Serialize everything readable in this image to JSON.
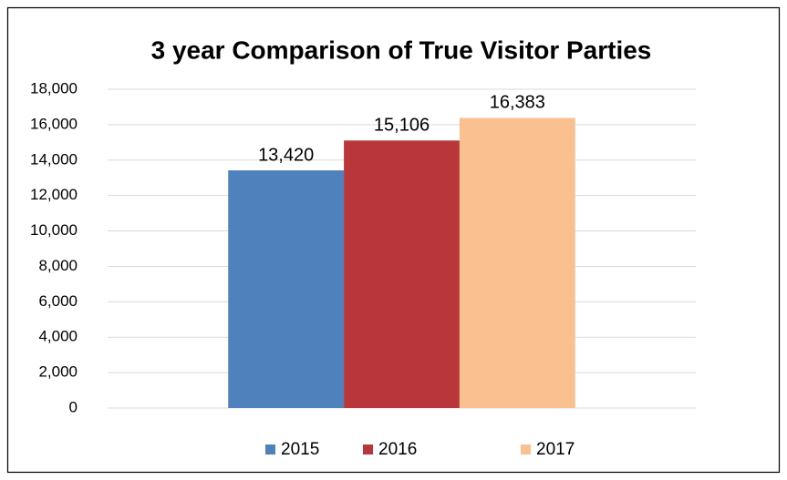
{
  "chart_data": {
    "type": "bar",
    "title": "3 year Comparison of True Visitor Parties",
    "categories": [
      null
    ],
    "series": [
      {
        "name": "2015",
        "color": "#4f81bd",
        "values": [
          13420
        ],
        "value_labels": [
          "13,420"
        ]
      },
      {
        "name": "2016",
        "color": "#b9373a",
        "values": [
          15106
        ],
        "value_labels": [
          "15,106"
        ]
      },
      {
        "name": "2017",
        "color": "#fac090",
        "values": [
          16383
        ],
        "value_labels": [
          "16,383"
        ]
      }
    ],
    "ylim": [
      0,
      18000
    ],
    "yticks": [
      0,
      {
        "value": 2000,
        "label": "2,000"
      },
      {
        "value": 4000,
        "label": "4,000"
      },
      {
        "value": 6000,
        "label": "6,000"
      },
      {
        "value": 8000,
        "label": "8,000"
      },
      {
        "value": 10000,
        "label": "10,000"
      },
      {
        "value": 12000,
        "label": "12,000"
      },
      {
        "value": 14000,
        "label": "14,000"
      },
      {
        "value": 16000,
        "label": "16,000"
      },
      {
        "value": 18000,
        "label": "18,000"
      }
    ],
    "grid": true,
    "legend": "bottom"
  }
}
